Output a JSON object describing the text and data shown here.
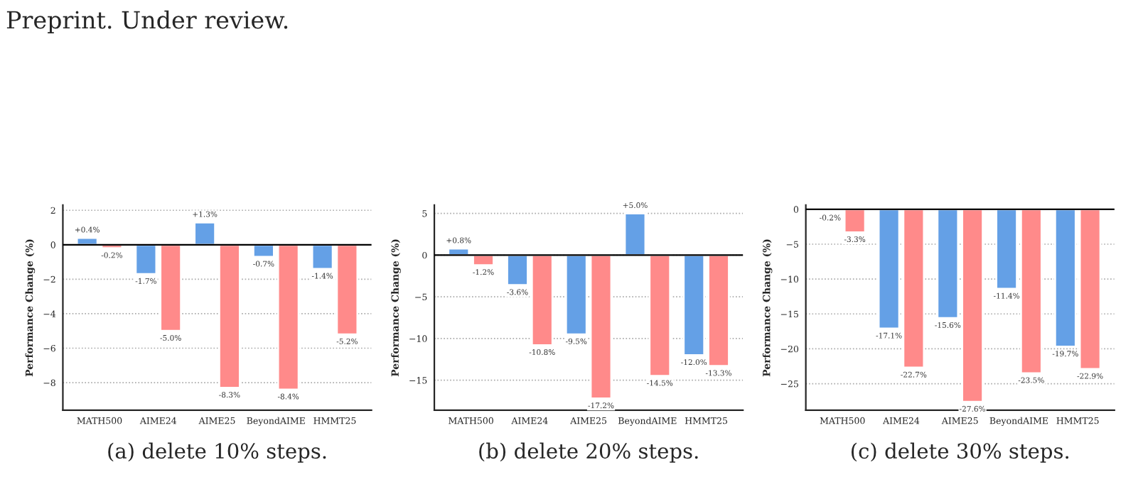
{
  "chart_data": [
    {
      "type": "bar",
      "categories": [
        "MATH500",
        "AIME24",
        "AIME25",
        "BeyondAIME",
        "HMMT25"
      ],
      "ylabel": "Performance Change (%)",
      "ylim": [
        -9.6,
        2.3
      ],
      "yticks": [
        {
          "value": -8,
          "label": "−8"
        },
        {
          "value": -6,
          "label": "−6"
        },
        {
          "value": -4,
          "label": "−4"
        },
        {
          "value": -2,
          "label": "−2"
        },
        0,
        2
      ],
      "grid": "y",
      "ref_lines": [
        {
          "axis": "y",
          "value": 0,
          "color": "#000000"
        }
      ],
      "series": [
        {
          "color": "#64a0e6",
          "values": [
            0.4,
            -1.7,
            1.3,
            -0.7,
            -1.4
          ],
          "value_labels": [
            "+0.4%",
            "-1.7%",
            "+1.3%",
            "-0.7%",
            "-1.4%"
          ]
        },
        {
          "color": "#ff8a8a",
          "values": [
            -0.2,
            -5.0,
            -8.3,
            -8.4,
            -5.2
          ],
          "value_labels": [
            "-0.2%",
            "-5.0%",
            "-8.3%",
            "-8.4%",
            "-5.2%"
          ]
        }
      ],
      "annotations": [
        "Preprint. Under review.",
        "(a) delete 10% steps."
      ]
    },
    {
      "type": "bar",
      "categories": [
        "MATH500",
        "AIME24",
        "AIME25",
        "BeyondAIME",
        "HMMT25"
      ],
      "ylabel": "Performance Change (%)",
      "ylim": [
        -18.6,
        6.0
      ],
      "yticks": [
        {
          "value": -15,
          "label": "−15"
        },
        {
          "value": -10,
          "label": "−10"
        },
        {
          "value": -5,
          "label": "−5"
        },
        0,
        5
      ],
      "grid": "y",
      "ref_lines": [
        {
          "axis": "y",
          "value": 0,
          "color": "#000000"
        }
      ],
      "series": [
        {
          "color": "#64a0e6",
          "values": [
            0.8,
            -3.6,
            -9.5,
            5.0,
            -12.0
          ],
          "value_labels": [
            "+0.8%",
            "-3.6%",
            "-9.5%",
            "+5.0%",
            "-12.0%"
          ]
        },
        {
          "color": "#ff8a8a",
          "values": [
            -1.2,
            -10.8,
            -17.2,
            -14.5,
            -13.3
          ],
          "value_labels": [
            "-1.2%",
            "-10.8%",
            "-17.2%",
            "-14.5%",
            "-13.3%"
          ]
        }
      ],
      "annotations": [
        "(b) delete 20% steps."
      ]
    },
    {
      "type": "bar",
      "categories": [
        "MATH500",
        "AIME24",
        "AIME25",
        "BeyondAIME",
        "HMMT25"
      ],
      "ylabel": "Performance Change (%)",
      "ylim": [
        -28.8,
        0.6
      ],
      "yticks": [
        {
          "value": -25,
          "label": "−25"
        },
        {
          "value": -20,
          "label": "−20"
        },
        {
          "value": -15,
          "label": "−15"
        },
        {
          "value": -10,
          "label": "−10"
        },
        {
          "value": -5,
          "label": "−5"
        },
        0
      ],
      "grid": "y",
      "ref_lines": [
        {
          "axis": "y",
          "value": 0,
          "color": "#000000"
        }
      ],
      "series": [
        {
          "color": "#64a0e6",
          "values": [
            -0.2,
            -17.1,
            -15.6,
            -11.4,
            -19.7
          ],
          "value_labels": [
            "-0.2%",
            "-17.1%",
            "-15.6%",
            "-11.4%",
            "-19.7%"
          ]
        },
        {
          "color": "#ff8a8a",
          "values": [
            -3.3,
            -22.7,
            -27.6,
            -23.5,
            -22.9
          ],
          "value_labels": [
            "-3.3%",
            "-22.7%",
            "-27.6%",
            "-23.5%",
            "-22.9%"
          ]
        }
      ],
      "annotations": [
        "(c) delete 30% steps."
      ]
    }
  ]
}
